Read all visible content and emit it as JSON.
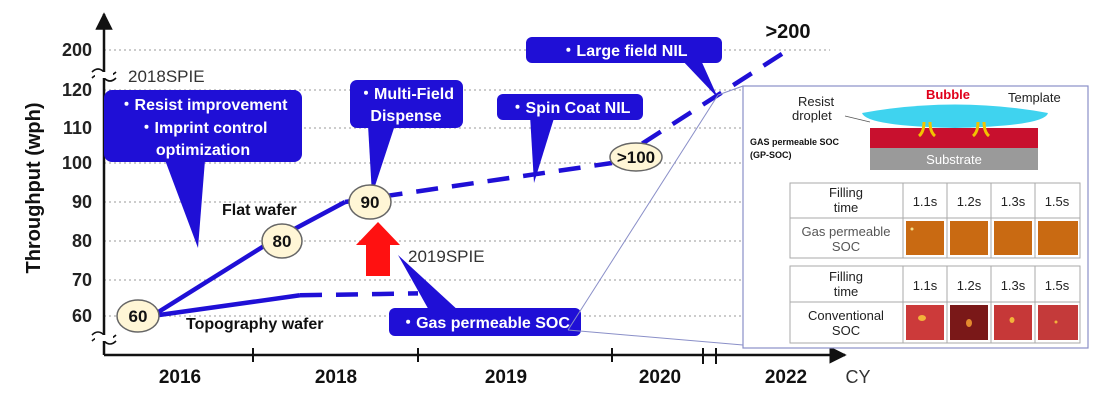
{
  "chart_data": {
    "type": "line",
    "ylabel": "Throughput (wph)",
    "xlabel": "CY",
    "x_ticks": [
      "2016",
      "2018",
      "2019",
      "2020",
      "2022"
    ],
    "y_ticks": [
      60,
      70,
      80,
      90,
      100,
      110,
      120,
      200
    ],
    "y_axis_break": true,
    "grid": true,
    "series": [
      {
        "name": "Flat wafer",
        "points": [
          {
            "x": "2016",
            "y": 60,
            "label": "60"
          },
          {
            "x": "2018",
            "y": 80,
            "label": "80"
          },
          {
            "x": "2018.5",
            "y": 90,
            "label": "90"
          },
          {
            "x": "2020",
            "y": 100,
            "label": ">100"
          },
          {
            "x": "2022",
            "y": 200,
            "label": ">200"
          }
        ]
      },
      {
        "name": "Topography wafer",
        "points": [
          {
            "x": "2016",
            "y": 60
          },
          {
            "x": "2018",
            "y": 65.5
          },
          {
            "x": "2019",
            "y": 66
          }
        ]
      }
    ],
    "annotations": [
      {
        "text": "2018SPIE"
      },
      {
        "text": "2019SPIE"
      }
    ],
    "callouts": [
      {
        "lines": [
          "・Resist improvement",
          "・Imprint control",
          "optimization"
        ]
      },
      {
        "lines": [
          "・Multi-Field",
          "Dispense"
        ]
      },
      {
        "lines": [
          "・Spin Coat NIL"
        ]
      },
      {
        "lines": [
          "・Large field NIL"
        ]
      },
      {
        "lines": [
          "・Gas permeable SOC"
        ]
      }
    ]
  },
  "inset": {
    "diagram": {
      "bubble_label": "Bubble",
      "template_label": "Template",
      "resist_label": "Resist",
      "droplet_label": "droplet",
      "gpsoc_label_1": "GAS permeable SOC",
      "gpsoc_label_2": "(GP-SOC)",
      "substrate_label": "Substrate",
      "colors": {
        "bubble": "#e0001b",
        "template": "#3fd3ef",
        "resist": "#c8102e",
        "substrate": "#9a9a9a"
      }
    },
    "table_gp": {
      "header_1": "Filling",
      "header_2": "time",
      "times": [
        "1.1s",
        "1.2s",
        "1.3s",
        "1.5s"
      ],
      "row_1": "Gas permeable",
      "row_2": "SOC",
      "cell_color": "#c96a12"
    },
    "table_conv": {
      "header_1": "Filling",
      "header_2": "time",
      "times": [
        "1.1s",
        "1.2s",
        "1.3s",
        "1.5s"
      ],
      "row_1": "Conventional",
      "row_2": "SOC",
      "cell_colors": [
        "#cc3a3a",
        "#7a1818",
        "#c63838",
        "#c43a3a"
      ]
    }
  }
}
